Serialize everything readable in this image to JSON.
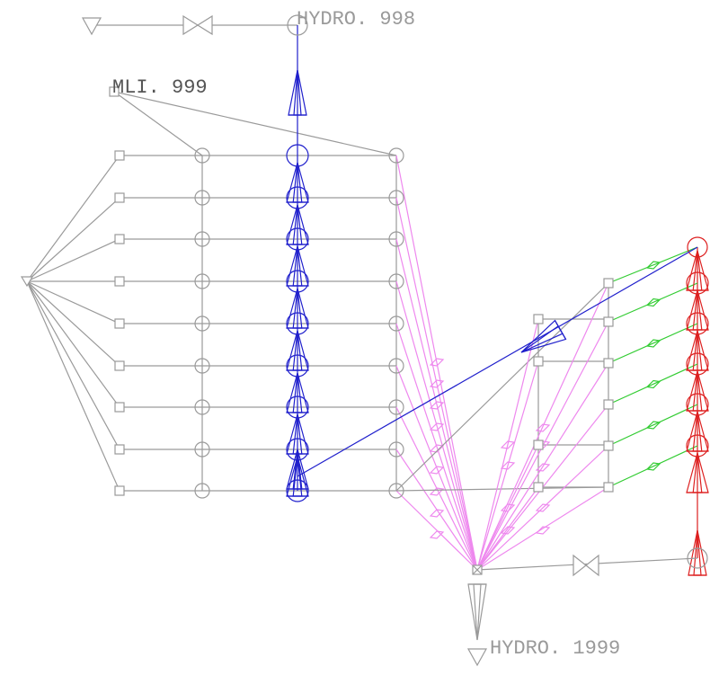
{
  "nodes": [
    {
      "label": "HYDRO. 998"
    },
    {
      "label": "MLI. 999"
    },
    {
      "label": "HYDRO. 1999"
    }
  ]
}
